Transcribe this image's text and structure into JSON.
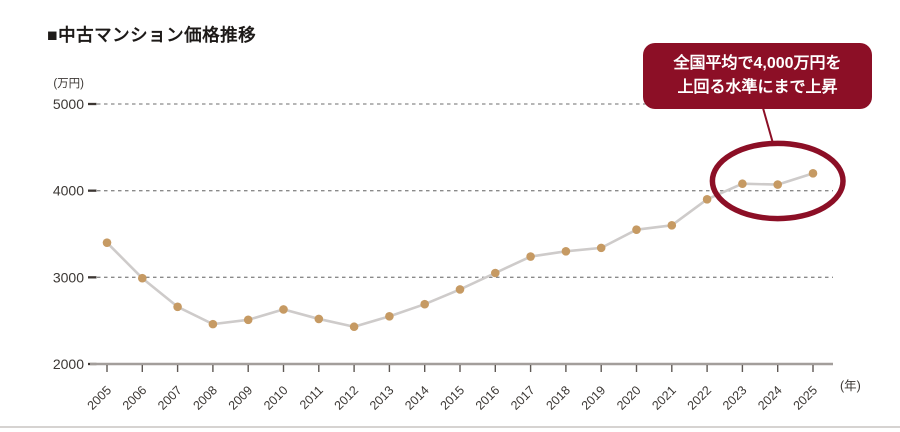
{
  "title": "■中古マンション価格推移",
  "annotation": {
    "lines": [
      "全国平均で4,000万円を",
      "上回る水準にまで上昇"
    ],
    "circled_years": [
      2023,
      2024,
      2025
    ]
  },
  "colors": {
    "accent_red": "#8c0f26",
    "callout_text": "#ffffff",
    "point": "#c69a63",
    "line": "#cecbca",
    "gridline": "#8a8a8a",
    "axis": "#a39e9b",
    "x_tick": "#5f5955",
    "y_tick": "#3b3531",
    "text_dark": "#1d1a18",
    "label": "#3c3835",
    "divider": "#d6d3d1"
  },
  "chart_data": {
    "type": "line",
    "title": "中古マンション価格推移",
    "y_unit_label": "(万円)",
    "x_unit_label": "(年)",
    "x": [
      2005,
      2006,
      2007,
      2008,
      2009,
      2010,
      2011,
      2012,
      2013,
      2014,
      2015,
      2016,
      2017,
      2018,
      2019,
      2020,
      2021,
      2022,
      2023,
      2024,
      2025
    ],
    "values": [
      3400,
      2990,
      2660,
      2460,
      2510,
      2630,
      2520,
      2430,
      2550,
      2690,
      2860,
      3050,
      3240,
      3300,
      3340,
      3550,
      3600,
      3900,
      4080,
      4070,
      4200
    ],
    "ylim": [
      2000,
      5000
    ],
    "yticks": [
      2000,
      3000,
      4000,
      5000
    ],
    "grid": "horizontal-dashed",
    "legend": "none"
  }
}
